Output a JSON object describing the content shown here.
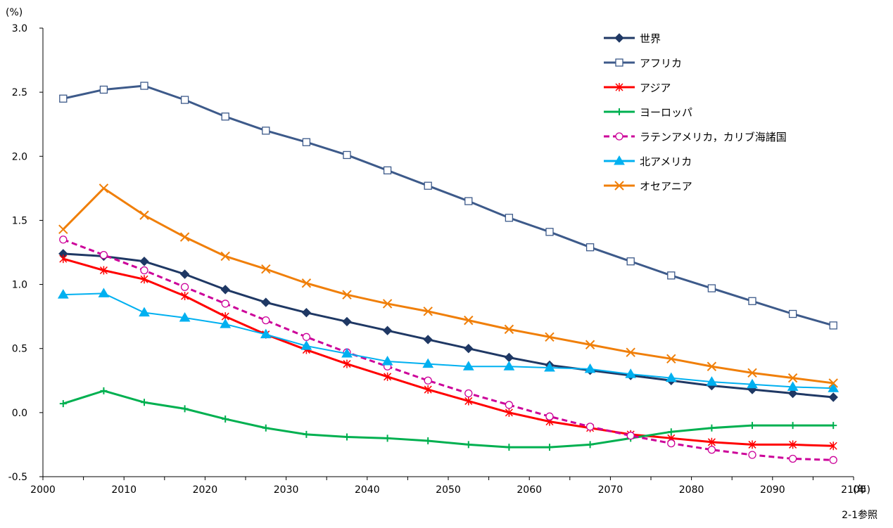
{
  "chart_data": {
    "type": "line",
    "ylabel": "(%)",
    "xlabel": "(年)",
    "note": "2-1参照",
    "ylim": [
      -0.5,
      3.0
    ],
    "xlim": [
      2000,
      2100
    ],
    "yticks": [
      "3.0",
      "2.5",
      "2.0",
      "1.5",
      "1.0",
      "0.5",
      "0.0",
      "-0.5"
    ],
    "ytick_values": [
      3.0,
      2.5,
      2.0,
      1.5,
      1.0,
      0.5,
      0.0,
      -0.5
    ],
    "xticks": [
      "2000",
      "2010",
      "2020",
      "2030",
      "2040",
      "2050",
      "2060",
      "2070",
      "2080",
      "2090",
      "2100"
    ],
    "xtick_values": [
      2000,
      2010,
      2020,
      2030,
      2040,
      2050,
      2060,
      2070,
      2080,
      2090,
      2100
    ],
    "grid": false,
    "legend_position": "top-right",
    "x": [
      2002.5,
      2007.5,
      2012.5,
      2017.5,
      2022.5,
      2027.5,
      2032.5,
      2037.5,
      2042.5,
      2047.5,
      2052.5,
      2057.5,
      2062.5,
      2067.5,
      2072.5,
      2077.5,
      2082.5,
      2087.5,
      2092.5,
      2097.5
    ],
    "series": [
      {
        "name": "世界",
        "color": "#1f3864",
        "marker": "diamond",
        "dash": false,
        "values": [
          1.24,
          1.22,
          1.18,
          1.08,
          0.96,
          0.86,
          0.78,
          0.71,
          0.64,
          0.57,
          0.5,
          0.43,
          0.37,
          0.33,
          0.29,
          0.25,
          0.21,
          0.18,
          0.15,
          0.12
        ]
      },
      {
        "name": "アフリカ",
        "color": "#3d5a8a",
        "marker": "square-open",
        "dash": false,
        "values": [
          2.45,
          2.52,
          2.55,
          2.44,
          2.31,
          2.2,
          2.11,
          2.01,
          1.89,
          1.77,
          1.65,
          1.52,
          1.41,
          1.29,
          1.18,
          1.07,
          0.97,
          0.87,
          0.77,
          0.68
        ]
      },
      {
        "name": "アジア",
        "color": "#ff0000",
        "marker": "asterisk",
        "dash": false,
        "values": [
          1.2,
          1.11,
          1.04,
          0.91,
          0.75,
          0.61,
          0.49,
          0.38,
          0.28,
          0.18,
          0.09,
          0.0,
          -0.07,
          -0.12,
          -0.17,
          -0.2,
          -0.23,
          -0.25,
          -0.25,
          -0.26
        ]
      },
      {
        "name": "ヨーロッパ",
        "color": "#00b050",
        "marker": "plus",
        "dash": false,
        "values": [
          0.07,
          0.17,
          0.08,
          0.03,
          -0.05,
          -0.12,
          -0.17,
          -0.19,
          -0.2,
          -0.22,
          -0.25,
          -0.27,
          -0.27,
          -0.25,
          -0.2,
          -0.15,
          -0.12,
          -0.1,
          -0.1,
          -0.1
        ]
      },
      {
        "name": "ラテンアメリカ，カリブ海諸国",
        "color": "#cc0099",
        "marker": "circle-open",
        "dash": true,
        "values": [
          1.35,
          1.23,
          1.11,
          0.98,
          0.85,
          0.72,
          0.59,
          0.47,
          0.36,
          0.25,
          0.15,
          0.06,
          -0.03,
          -0.11,
          -0.18,
          -0.24,
          -0.29,
          -0.33,
          -0.36,
          -0.37
        ]
      },
      {
        "name": "北アメリカ",
        "color": "#00b0f0",
        "marker": "triangle",
        "dash": false,
        "values": [
          0.92,
          0.93,
          0.78,
          0.74,
          0.69,
          0.61,
          0.52,
          0.46,
          0.4,
          0.38,
          0.36,
          0.36,
          0.35,
          0.34,
          0.3,
          0.27,
          0.24,
          0.22,
          0.2,
          0.19
        ]
      },
      {
        "name": "オセアニア",
        "color": "#f07f09",
        "marker": "x",
        "dash": false,
        "values": [
          1.43,
          1.75,
          1.54,
          1.37,
          1.22,
          1.12,
          1.01,
          0.92,
          0.85,
          0.79,
          0.72,
          0.65,
          0.59,
          0.53,
          0.47,
          0.42,
          0.36,
          0.31,
          0.27,
          0.23
        ]
      }
    ]
  }
}
